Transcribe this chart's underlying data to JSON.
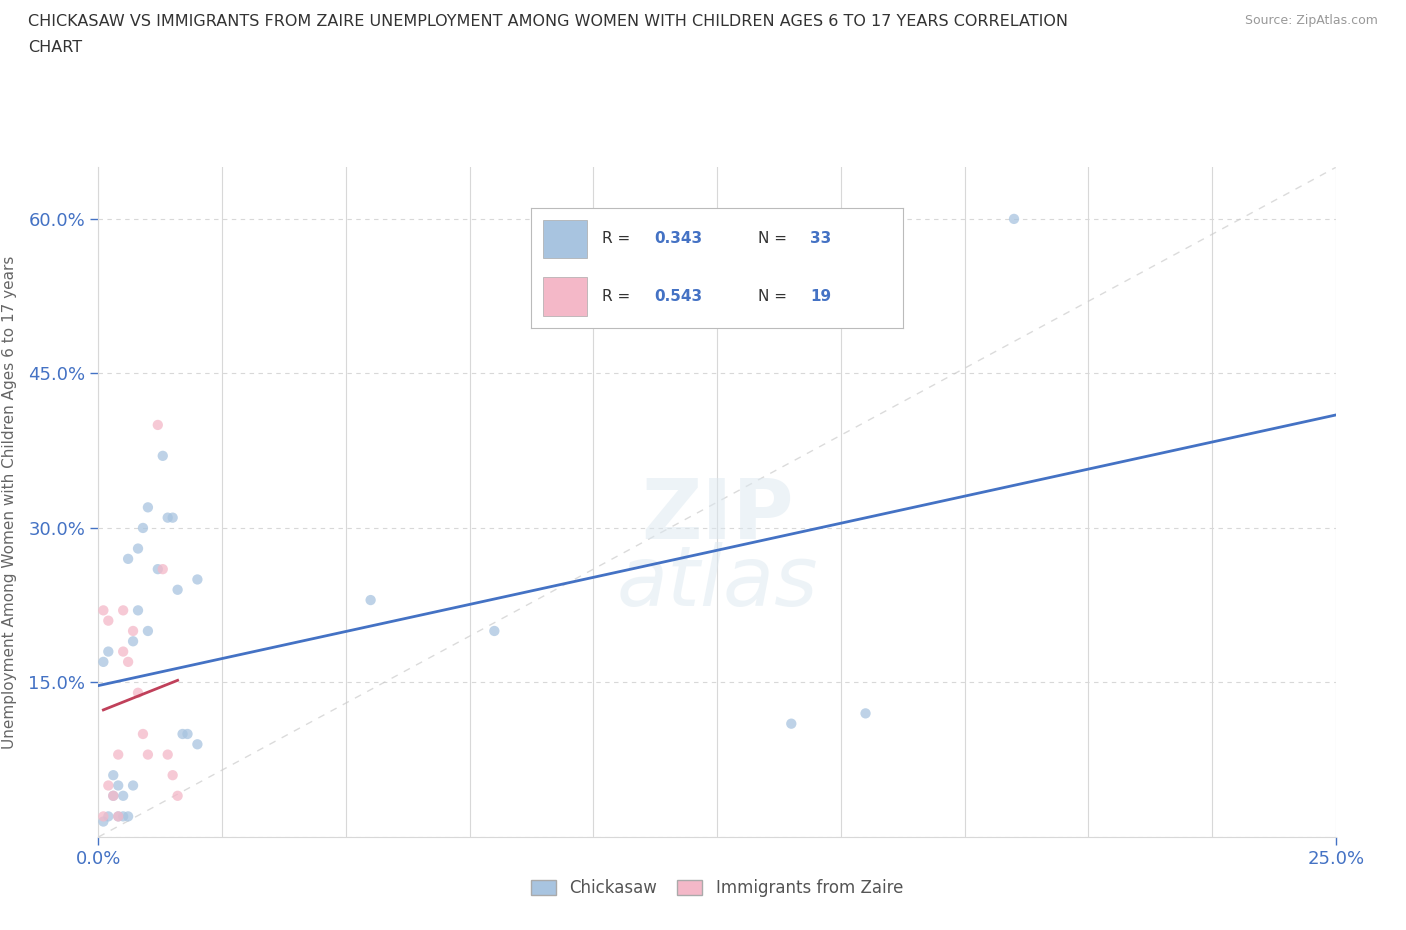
{
  "title": "CHICKASAW VS IMMIGRANTS FROM ZAIRE UNEMPLOYMENT AMONG WOMEN WITH CHILDREN AGES 6 TO 17 YEARS CORRELATION\nCHART",
  "source": "Source: ZipAtlas.com",
  "xlim": [
    0.0,
    0.25
  ],
  "ylim": [
    0.0,
    0.65
  ],
  "chickasaw_color": "#a8c4e0",
  "zaire_color": "#f4b8c8",
  "trendline_chickasaw_color": "#4472c4",
  "trendline_zaire_color": "#c0405a",
  "identity_line_color": "#c8c8c8",
  "legend_R_chickasaw": "0.343",
  "legend_N_chickasaw": "33",
  "legend_R_zaire": "0.543",
  "legend_N_zaire": "19",
  "legend_text_color": "#4472c4",
  "ylabel_label": "Unemployment Among Women with Children Ages 6 to 17 years",
  "chickasaw_x": [
    0.001,
    0.001,
    0.002,
    0.002,
    0.003,
    0.003,
    0.004,
    0.004,
    0.005,
    0.005,
    0.006,
    0.006,
    0.007,
    0.007,
    0.008,
    0.008,
    0.009,
    0.01,
    0.01,
    0.012,
    0.013,
    0.014,
    0.015,
    0.016,
    0.017,
    0.018,
    0.02,
    0.02,
    0.055,
    0.08,
    0.14,
    0.155,
    0.185
  ],
  "chickasaw_y": [
    0.015,
    0.17,
    0.02,
    0.18,
    0.04,
    0.06,
    0.02,
    0.05,
    0.02,
    0.04,
    0.02,
    0.27,
    0.05,
    0.19,
    0.22,
    0.28,
    0.3,
    0.2,
    0.32,
    0.26,
    0.37,
    0.31,
    0.31,
    0.24,
    0.1,
    0.1,
    0.09,
    0.25,
    0.23,
    0.2,
    0.11,
    0.12,
    0.6
  ],
  "zaire_x": [
    0.001,
    0.001,
    0.002,
    0.002,
    0.003,
    0.004,
    0.004,
    0.005,
    0.005,
    0.006,
    0.007,
    0.008,
    0.009,
    0.01,
    0.012,
    0.013,
    0.014,
    0.015,
    0.016
  ],
  "zaire_y": [
    0.02,
    0.22,
    0.05,
    0.21,
    0.04,
    0.02,
    0.08,
    0.18,
    0.22,
    0.17,
    0.2,
    0.14,
    0.1,
    0.08,
    0.4,
    0.26,
    0.08,
    0.06,
    0.04
  ],
  "background_color": "#ffffff",
  "grid_color": "#d8d8d8",
  "tick_color": "#4472c4",
  "marker_size": 55,
  "marker_alpha": 0.75
}
